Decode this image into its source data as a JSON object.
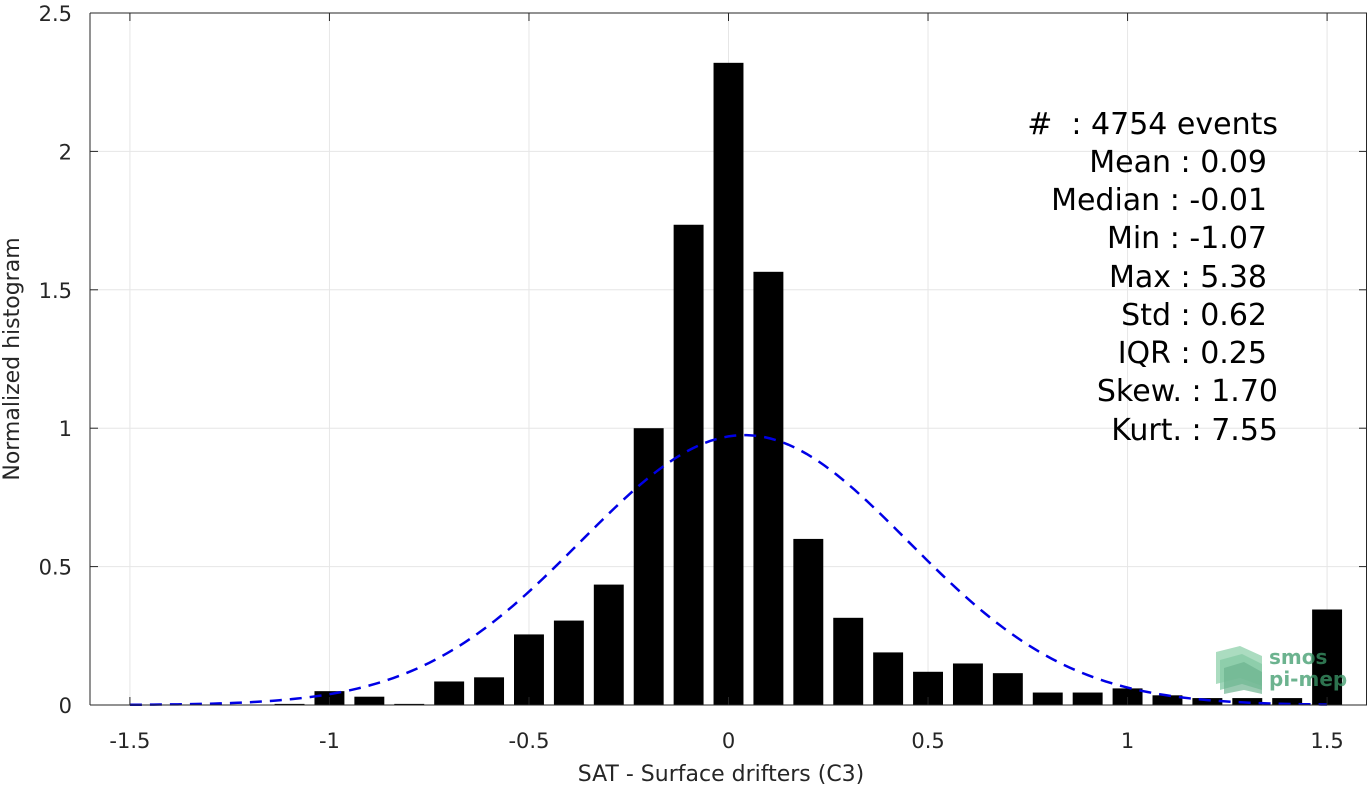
{
  "chart_data": {
    "type": "bar",
    "xlabel": "SAT - Surface drifters (C3)",
    "ylabel": "Normalized histogram",
    "xlim": [
      -1.6,
      1.6
    ],
    "ylim": [
      0,
      2.5
    ],
    "grid": true,
    "x_ticks": [
      -1.5,
      -1,
      -0.5,
      0,
      0.5,
      1,
      1.5
    ],
    "x_tick_labels": [
      "-1.5",
      "-1",
      "-0.5",
      "0",
      "0.5",
      "1",
      "1.5"
    ],
    "y_ticks": [
      0,
      0.5,
      1,
      1.5,
      2,
      2.5
    ],
    "y_tick_labels": [
      "0",
      "0.5",
      "1",
      "1.5",
      "2",
      "2.5"
    ],
    "bar_width": 0.075,
    "bar_color": "#000000",
    "series": [
      {
        "x": [
          -1.5,
          -1.4,
          -1.3,
          -1.2,
          -1.1,
          -1.0,
          -0.9,
          -0.8,
          -0.7,
          -0.6,
          -0.5,
          -0.4,
          -0.3,
          -0.2,
          -0.1,
          0.0,
          0.1,
          0.2,
          0.3,
          0.4,
          0.5,
          0.6,
          0.7,
          0.8,
          0.9,
          1.0,
          1.1,
          1.2,
          1.3,
          1.4,
          1.5
        ],
        "values": [
          0,
          0,
          0,
          0,
          0.004,
          0.05,
          0.03,
          0.004,
          0.085,
          0.1,
          0.255,
          0.305,
          0.435,
          1.0,
          1.735,
          2.32,
          1.565,
          0.6,
          0.315,
          0.19,
          0.12,
          0.15,
          0.115,
          0.045,
          0.045,
          0.06,
          0.035,
          0.025,
          0.025,
          0.025,
          0.345
        ]
      }
    ],
    "fit_curve": {
      "type": "normal",
      "mean": 0.04,
      "peak": 0.975,
      "std": 0.41,
      "color": "#0000e6",
      "style": "dashed",
      "x_range": [
        -1.5,
        1.5
      ]
    },
    "annotations": [
      "#  : 4754 events",
      "Mean : 0.09",
      "Median : -0.01",
      "Min : -1.07",
      "Max : 5.38",
      "Std : 0.62",
      "IQR : 0.25",
      "Skew. : 1.70",
      "Kurt. : 7.55"
    ]
  },
  "logo": {
    "line1": "smos",
    "line2": "pi-mep",
    "color": "#3c9a6a"
  }
}
